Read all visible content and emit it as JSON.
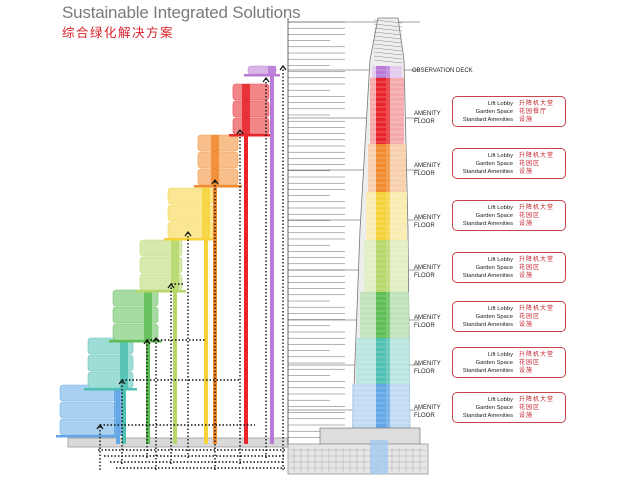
{
  "header": {
    "title": "Sustainable Integrated Solutions",
    "subtitle": "综合绿化解决方案"
  },
  "tower": {
    "observation_label": "OBSERVATION DECK",
    "amenity_label_line1": "AMENITY",
    "amenity_label_line2": "FLOOR"
  },
  "zones": [
    {
      "color": "#b97bd6",
      "en": [
        "Lift Lobby",
        "Garden Space",
        "Standard Amenities"
      ],
      "zh": [
        "升降机大堂",
        "花园餐厅",
        "设施"
      ]
    },
    {
      "color": "#e8252b",
      "en": [
        "Lift Lobby",
        "Garden Space",
        "Standard Amenities"
      ],
      "zh": [
        "升降机大堂",
        "花园餐厅",
        "设施"
      ]
    },
    {
      "color": "#f28a2e",
      "en": [
        "Lift Lobby",
        "Garden Space",
        "Standard Amenities"
      ],
      "zh": [
        "升降机大堂",
        "花园区",
        "设施"
      ]
    },
    {
      "color": "#f6d23a",
      "en": [
        "Lift Lobby",
        "Garden Space",
        "Standard Amenities"
      ],
      "zh": [
        "升降机大堂",
        "花园区",
        "设施"
      ]
    },
    {
      "color": "#b7d76a",
      "en": [
        "Lift Lobby",
        "Garden Space",
        "Standard Amenities"
      ],
      "zh": [
        "升降机大堂",
        "花园区",
        "设施"
      ]
    },
    {
      "color": "#5ebd55",
      "en": [
        "Lift Lobby",
        "Garden Space",
        "Standard Amenities"
      ],
      "zh": [
        "升降机大堂",
        "花园区",
        "设施"
      ]
    },
    {
      "color": "#4fc0b4",
      "en": [
        "Lift Lobby",
        "Garden Space",
        "Standard Amenities"
      ],
      "zh": [
        "升降机大堂",
        "花园区",
        "设施"
      ]
    },
    {
      "color": "#63a7e6",
      "en": [
        "Lift Lobby",
        "Garden Space",
        "Standard Amenities"
      ],
      "zh": [
        "升降机大堂",
        "花园区",
        "设施"
      ]
    }
  ]
}
